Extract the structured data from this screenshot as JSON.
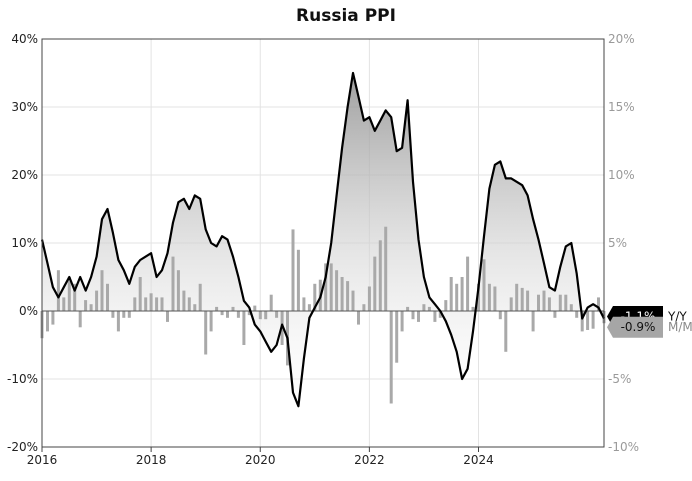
{
  "chart_data": {
    "type": "line",
    "title": "Russia PPI",
    "x_ticks": [
      "2016",
      "2018",
      "2020",
      "2022",
      "2024"
    ],
    "left_axis": {
      "ticks": [
        "-20%",
        "-10%",
        "0%",
        "10%",
        "20%",
        "30%",
        "40%"
      ],
      "ylim": [
        -20,
        40
      ],
      "unit": "%"
    },
    "right_axis": {
      "ticks": [
        "-10%",
        "-5%",
        "5%",
        "10%",
        "15%",
        "20%"
      ],
      "ylim": [
        -10,
        20
      ],
      "unit": "%"
    },
    "grid": true,
    "series": [
      {
        "name": "Y/Y",
        "axis": "left",
        "style": "line with gradient fill",
        "color": "#000000",
        "last_label": "-1.1%",
        "x": [
          2016.0,
          2016.1,
          2016.2,
          2016.3,
          2016.4,
          2016.5,
          2016.6,
          2016.7,
          2016.8,
          2016.9,
          2017.0,
          2017.1,
          2017.2,
          2017.3,
          2017.4,
          2017.5,
          2017.6,
          2017.7,
          2017.8,
          2017.9,
          2018.0,
          2018.1,
          2018.2,
          2018.3,
          2018.4,
          2018.5,
          2018.6,
          2018.7,
          2018.8,
          2018.9,
          2019.0,
          2019.1,
          2019.2,
          2019.3,
          2019.4,
          2019.5,
          2019.6,
          2019.7,
          2019.8,
          2019.9,
          2020.0,
          2020.1,
          2020.2,
          2020.3,
          2020.4,
          2020.5,
          2020.6,
          2020.7,
          2020.8,
          2020.9,
          2021.0,
          2021.1,
          2021.2,
          2021.3,
          2021.4,
          2021.5,
          2021.6,
          2021.7,
          2021.8,
          2021.9,
          2022.0,
          2022.1,
          2022.2,
          2022.3,
          2022.4,
          2022.5,
          2022.6,
          2022.7,
          2022.8,
          2022.9,
          2023.0,
          2023.1,
          2023.2,
          2023.3,
          2023.4,
          2023.5,
          2023.6,
          2023.7,
          2023.8,
          2023.9,
          2024.0,
          2024.1,
          2024.2,
          2024.3,
          2024.4,
          2024.5,
          2024.6,
          2024.7,
          2024.8,
          2024.9,
          2025.0,
          2025.1,
          2025.2,
          2025.3,
          2025.4,
          2025.5,
          2025.6,
          2025.7,
          2025.8,
          2025.9
        ],
        "values": [
          10.5,
          7.0,
          3.5,
          2.0,
          3.5,
          5.0,
          3.0,
          5.0,
          3.0,
          5.0,
          8.0,
          13.5,
          15.0,
          11.5,
          7.5,
          6.0,
          4.0,
          6.5,
          7.5,
          8.0,
          8.5,
          5.0,
          6.0,
          8.5,
          13.0,
          16.0,
          16.5,
          15.0,
          17.0,
          16.5,
          12.0,
          10.0,
          9.5,
          11.0,
          10.5,
          8.0,
          5.0,
          1.5,
          0.5,
          -2.0,
          -3.0,
          -4.5,
          -6.0,
          -5.0,
          -2.0,
          -4.0,
          -12.0,
          -14.0,
          -7.0,
          -1.0,
          0.5,
          2.0,
          5.0,
          10.0,
          17.0,
          24.0,
          30.0,
          35.0,
          31.5,
          28.0,
          28.5,
          26.5,
          28.0,
          29.5,
          28.5,
          23.5,
          24.0,
          31.0,
          19.0,
          10.5,
          5.0,
          2.0,
          1.0,
          0.0,
          -1.5,
          -3.5,
          -6.0,
          -10.0,
          -8.5,
          -3.0,
          3.5,
          11.0,
          18.0,
          21.5,
          22.0,
          19.5,
          19.5,
          19.0,
          18.5,
          17.0,
          13.5,
          10.5,
          7.0,
          3.5,
          3.0,
          6.5,
          9.5,
          10.0,
          5.5,
          -1.1
        ],
        "x_end": [
          2025.9,
          2026.0,
          2026.1,
          2026.2,
          2026.3
        ],
        "values_end": [
          -1.1,
          0.5,
          1.0,
          0.5,
          -1.1
        ]
      },
      {
        "name": "M/M",
        "axis": "right",
        "style": "bar",
        "color": "#a9a9a9",
        "last_label": "-0.9%",
        "x": [
          2016.0,
          2016.1,
          2016.2,
          2016.3,
          2016.4,
          2016.5,
          2016.6,
          2016.7,
          2016.8,
          2016.9,
          2017.0,
          2017.1,
          2017.2,
          2017.3,
          2017.4,
          2017.5,
          2017.6,
          2017.7,
          2017.8,
          2017.9,
          2018.0,
          2018.1,
          2018.2,
          2018.3,
          2018.4,
          2018.5,
          2018.6,
          2018.7,
          2018.8,
          2018.9,
          2019.0,
          2019.1,
          2019.2,
          2019.3,
          2019.4,
          2019.5,
          2019.6,
          2019.7,
          2019.8,
          2019.9,
          2020.0,
          2020.1,
          2020.2,
          2020.3,
          2020.4,
          2020.5,
          2020.6,
          2020.7,
          2020.8,
          2020.9,
          2021.0,
          2021.1,
          2021.2,
          2021.3,
          2021.4,
          2021.5,
          2021.6,
          2021.7,
          2021.8,
          2021.9,
          2022.0,
          2022.1,
          2022.2,
          2022.3,
          2022.4,
          2022.5,
          2022.6,
          2022.7,
          2022.8,
          2022.9,
          2023.0,
          2023.1,
          2023.2,
          2023.3,
          2023.4,
          2023.5,
          2023.6,
          2023.7,
          2023.8,
          2023.9,
          2024.0,
          2024.1,
          2024.2,
          2024.3,
          2024.4,
          2024.5,
          2024.6,
          2024.7,
          2024.8,
          2024.9,
          2025.0,
          2025.1,
          2025.2,
          2025.3,
          2025.4,
          2025.5,
          2025.6,
          2025.7,
          2025.8,
          2025.9
        ],
        "values": [
          -2.0,
          -1.5,
          -1.0,
          3.0,
          1.0,
          2.5,
          2.0,
          -1.2,
          0.8,
          0.5,
          1.5,
          3.0,
          2.0,
          -0.5,
          -1.5,
          -0.5,
          -0.5,
          1.0,
          2.5,
          1.0,
          1.3,
          1.0,
          1.0,
          -0.8,
          4.0,
          3.0,
          1.5,
          1.0,
          0.5,
          2.0,
          -3.2,
          -1.5,
          0.3,
          -0.3,
          -0.5,
          0.3,
          -0.5,
          -2.5,
          -0.3,
          0.4,
          -0.6,
          -0.6,
          1.2,
          -0.5,
          -2.5,
          -4.0,
          6.0,
          4.5,
          1.0,
          0.5,
          2.0,
          2.3,
          3.5,
          3.5,
          3.0,
          2.5,
          2.2,
          1.5,
          -1.0,
          0.5,
          1.8,
          4.0,
          5.2,
          6.2,
          -6.8,
          -3.8,
          -1.5,
          0.3,
          -0.6,
          -0.8,
          0.5,
          0.3,
          -0.8,
          -0.5,
          0.8,
          2.5,
          2.0,
          2.5,
          4.0,
          0.3,
          2.0,
          3.8,
          2.0,
          1.8,
          -0.6,
          -3.0,
          1.0,
          2.0,
          1.7,
          1.5,
          -1.5,
          1.2,
          1.5,
          1.0,
          -0.5,
          1.2,
          1.2,
          0.5,
          -0.5,
          -1.5
        ],
        "x_end": [
          2026.0,
          2026.1,
          2026.2,
          2026.3
        ],
        "values_end": [
          -1.4,
          -1.3,
          1.0,
          -0.9
        ]
      }
    ]
  }
}
